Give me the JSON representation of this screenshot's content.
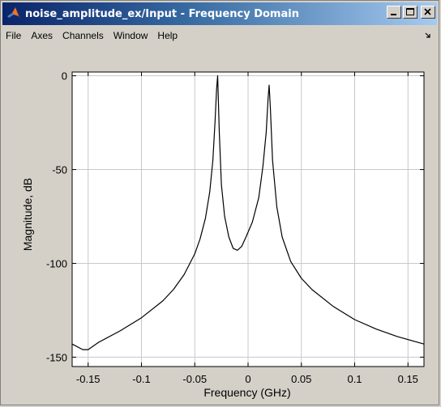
{
  "window": {
    "title": "noise_amplitude_ex/Input - Frequency Domain",
    "buttons": [
      "minimize",
      "maximize",
      "close"
    ]
  },
  "menubar": {
    "items": [
      "File",
      "Axes",
      "Channels",
      "Window",
      "Help"
    ]
  },
  "colors": {
    "titlebar_start": "#0a246a",
    "titlebar_end": "#a6caf0",
    "plot_background": "#ffffff",
    "trace": "#000000",
    "grid": "#c8c8c8"
  },
  "chart_data": {
    "type": "line",
    "title": "",
    "xlabel": "Frequency (GHz)",
    "ylabel": "Magnitude, dB",
    "xlim": [
      -0.165,
      0.165
    ],
    "ylim": [
      -155,
      2
    ],
    "grid": true,
    "xticks": [
      -0.15,
      -0.1,
      -0.05,
      0,
      0.05,
      0.1,
      0.15
    ],
    "xtick_labels": [
      "-0.15",
      "-0.1",
      "-0.05",
      "0",
      "0.05",
      "0.1",
      "0.15"
    ],
    "yticks": [
      0,
      -50,
      -100,
      -150
    ],
    "ytick_labels": [
      "0",
      "-50",
      "-100",
      "-150"
    ],
    "series": [
      {
        "x": [
          -0.165,
          -0.155,
          -0.15,
          -0.14,
          -0.12,
          -0.1,
          -0.08,
          -0.07,
          -0.06,
          -0.05,
          -0.045,
          -0.04,
          -0.036,
          -0.033,
          -0.031,
          -0.0295,
          -0.0285,
          -0.027,
          -0.025,
          -0.022,
          -0.018,
          -0.014,
          -0.01,
          -0.006,
          -0.002,
          0.004,
          0.01,
          0.014,
          0.017,
          0.0188,
          0.0198,
          0.021,
          0.023,
          0.027,
          0.032,
          0.04,
          0.05,
          0.06,
          0.08,
          0.1,
          0.12,
          0.14,
          0.165
        ],
        "y": [
          -143,
          -146,
          -146,
          -142,
          -136,
          -129,
          -120,
          -114,
          -106,
          -95,
          -87,
          -76,
          -62,
          -45,
          -25,
          -7,
          0,
          -30,
          -58,
          -75,
          -86,
          -92,
          -93,
          -91,
          -86,
          -78,
          -65,
          -48,
          -30,
          -12,
          -5,
          -18,
          -45,
          -70,
          -86,
          -99,
          -108,
          -114,
          -123,
          -130,
          -135,
          -139,
          -143
        ]
      }
    ]
  }
}
